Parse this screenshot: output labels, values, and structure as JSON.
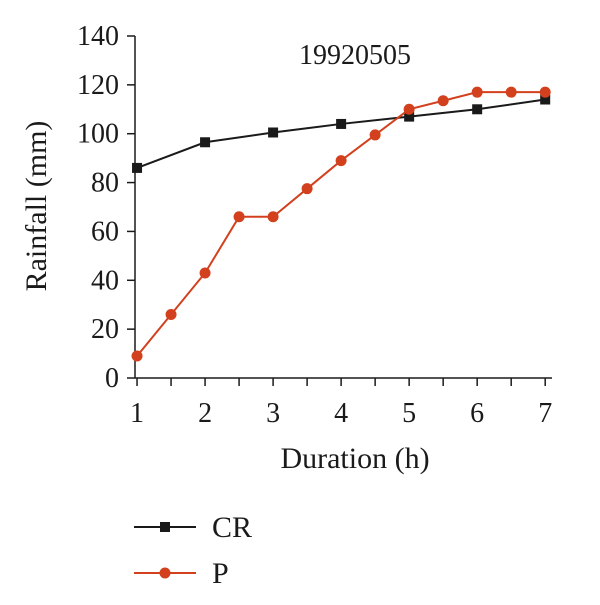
{
  "chart_data": {
    "type": "line",
    "title": "19920505",
    "xlabel": "Duration (h)",
    "ylabel": "Rainfall (mm)",
    "xlim": [
      0.97,
      7.1
    ],
    "ylim": [
      0,
      140
    ],
    "x_ticks": [
      "1",
      "2",
      "3",
      "4",
      "5",
      "6",
      "7"
    ],
    "y_ticks": [
      "0",
      "20",
      "40",
      "60",
      "80",
      "100",
      "120",
      "140"
    ],
    "grid": false,
    "legend_position": "bottom-left",
    "series": [
      {
        "name": "CR",
        "color": "#1a1a1a",
        "marker": "square",
        "x": [
          1,
          2,
          3,
          4,
          5,
          6,
          7
        ],
        "y": [
          86,
          96.5,
          100.5,
          104,
          107,
          110,
          114
        ]
      },
      {
        "name": "P",
        "color": "#d2401e",
        "marker": "circle",
        "x": [
          1,
          1.5,
          2,
          2.5,
          3,
          3.5,
          4,
          4.5,
          5,
          5.5,
          6,
          6.5,
          7
        ],
        "y": [
          9,
          26,
          43,
          66,
          66,
          77.5,
          89,
          99.5,
          110,
          113.5,
          117,
          117,
          117
        ]
      }
    ]
  }
}
